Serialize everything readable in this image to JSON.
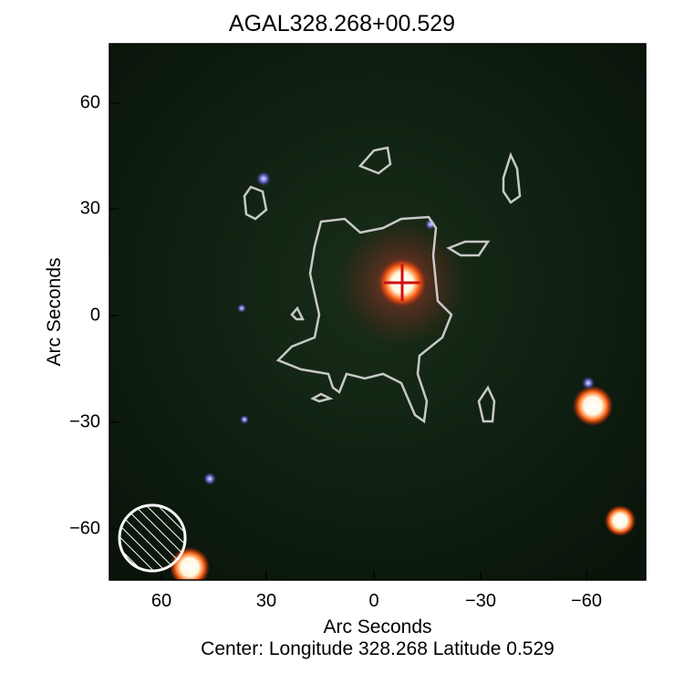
{
  "chart_data": {
    "type": "image",
    "title": "AGAL328.268+00.529",
    "xlabel": "Arc Seconds",
    "ylabel": "Arc Seconds",
    "caption": "Center:  Longitude 328.268 Latitude 0.529",
    "xlim": [
      75,
      -75
    ],
    "ylim": [
      -75,
      75
    ],
    "xticks": [
      "60",
      "30",
      "0",
      "−30",
      "−60"
    ],
    "yticks": [
      "60",
      "30",
      "0",
      "−30",
      "−60"
    ],
    "xtick_values": [
      60,
      30,
      0,
      -30,
      -60
    ],
    "ytick_values": [
      60,
      30,
      0,
      -30,
      -60
    ],
    "marker": {
      "symbol": "cross",
      "x": -8,
      "y": 9,
      "color": "#d01010"
    },
    "contour_color": "#c8c8c8",
    "beam": "hatched-circle",
    "background": "#0a1a0c"
  }
}
